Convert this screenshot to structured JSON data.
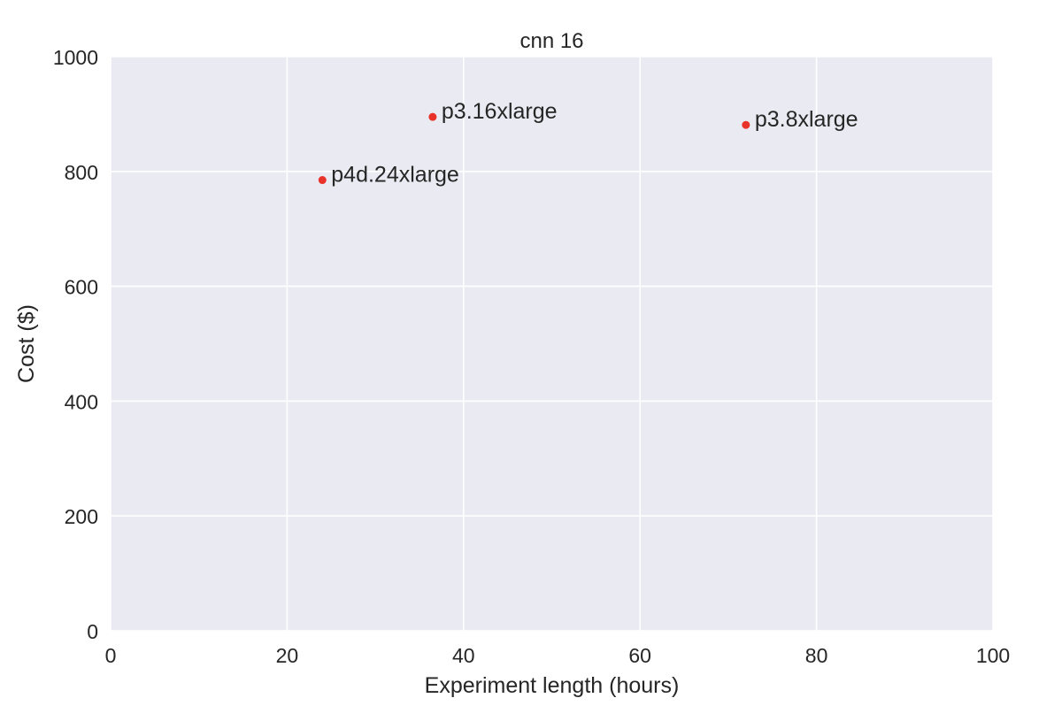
{
  "chart_data": {
    "type": "scatter",
    "title": "cnn 16",
    "xlabel": "Experiment length (hours)",
    "ylabel": "Cost ($)",
    "xlim": [
      0,
      100
    ],
    "ylim": [
      0,
      1000
    ],
    "xticks": [
      0,
      20,
      40,
      60,
      80,
      100
    ],
    "yticks": [
      0,
      200,
      400,
      600,
      800,
      1000
    ],
    "grid": true,
    "background_color": "#eaeaf2",
    "grid_color": "#ffffff",
    "point_color": "#e8322a",
    "points": [
      {
        "label": "p4d.24xlarge",
        "x": 24,
        "y": 785
      },
      {
        "label": "p3.16xlarge",
        "x": 36.5,
        "y": 895
      },
      {
        "label": "p3.8xlarge",
        "x": 72,
        "y": 881
      }
    ]
  }
}
